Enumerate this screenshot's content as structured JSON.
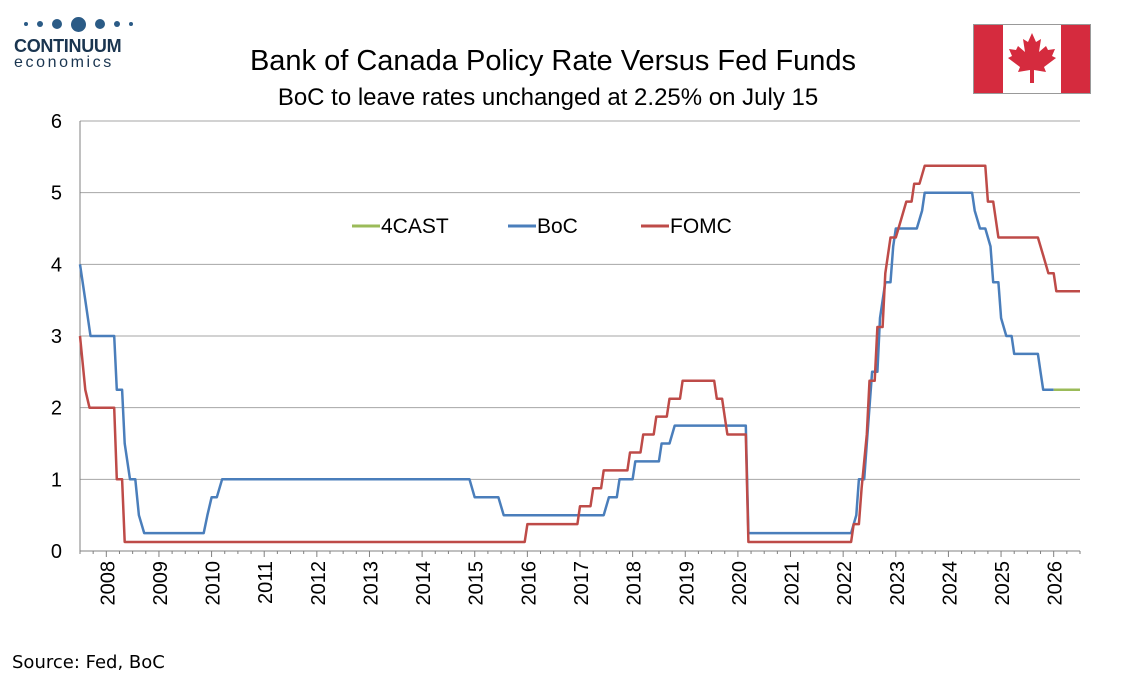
{
  "logo": {
    "name": "CONTINUUM",
    "sub": "economics"
  },
  "source": "Source: Fed, BoC",
  "colors": {
    "forecast": "#9bbb59",
    "boc": "#4a7ebb",
    "fomc": "#be4b48",
    "grid": "#a6a6a6",
    "flag_red": "#d52b3e"
  },
  "chart_data": {
    "type": "line",
    "title": "Bank of Canada Policy Rate Versus Fed Funds",
    "subtitle": "BoC to leave rates unchanged at 2.25% on July 15",
    "ylim": [
      0,
      6
    ],
    "yticks": [
      0,
      1,
      2,
      3,
      4,
      5,
      6
    ],
    "xlim": [
      2007.5,
      2026.5
    ],
    "xtick_labels": [
      "2008",
      "2009",
      "2010",
      "2011",
      "2012",
      "2013",
      "2014",
      "2015",
      "2016",
      "2017",
      "2018",
      "2019",
      "2020",
      "2021",
      "2022",
      "2023",
      "2024",
      "2025",
      "2026"
    ],
    "legend": {
      "placement": "top-center",
      "entries": [
        "4CAST",
        "BoC",
        "FOMC"
      ]
    },
    "grid": true,
    "series": [
      {
        "name": "4CAST",
        "points": [
          [
            2026.0,
            2.25
          ],
          [
            2026.5,
            2.25
          ]
        ]
      },
      {
        "name": "BoC",
        "points": [
          [
            2007.5,
            4.0
          ],
          [
            2007.6,
            3.5
          ],
          [
            2007.7,
            3.0
          ],
          [
            2008.1,
            3.0
          ],
          [
            2008.15,
            3.0
          ],
          [
            2008.2,
            2.25
          ],
          [
            2008.3,
            2.25
          ],
          [
            2008.35,
            1.5
          ],
          [
            2008.45,
            1.0
          ],
          [
            2008.55,
            1.0
          ],
          [
            2008.62,
            0.5
          ],
          [
            2008.72,
            0.25
          ],
          [
            2009.85,
            0.25
          ],
          [
            2009.92,
            0.5
          ],
          [
            2010.0,
            0.75
          ],
          [
            2010.1,
            0.75
          ],
          [
            2010.2,
            1.0
          ],
          [
            2014.9,
            1.0
          ],
          [
            2015.0,
            0.75
          ],
          [
            2015.45,
            0.75
          ],
          [
            2015.55,
            0.5
          ],
          [
            2017.45,
            0.5
          ],
          [
            2017.55,
            0.75
          ],
          [
            2017.7,
            0.75
          ],
          [
            2017.75,
            1.0
          ],
          [
            2018.0,
            1.0
          ],
          [
            2018.05,
            1.25
          ],
          [
            2018.5,
            1.25
          ],
          [
            2018.55,
            1.5
          ],
          [
            2018.7,
            1.5
          ],
          [
            2018.8,
            1.75
          ],
          [
            2020.15,
            1.75
          ],
          [
            2020.2,
            0.25
          ],
          [
            2022.15,
            0.25
          ],
          [
            2022.25,
            0.5
          ],
          [
            2022.3,
            1.0
          ],
          [
            2022.4,
            1.0
          ],
          [
            2022.45,
            1.5
          ],
          [
            2022.55,
            2.5
          ],
          [
            2022.65,
            2.5
          ],
          [
            2022.7,
            3.25
          ],
          [
            2022.8,
            3.75
          ],
          [
            2022.9,
            3.75
          ],
          [
            2022.95,
            4.25
          ],
          [
            2023.0,
            4.5
          ],
          [
            2023.4,
            4.5
          ],
          [
            2023.5,
            4.75
          ],
          [
            2023.55,
            5.0
          ],
          [
            2024.45,
            5.0
          ],
          [
            2024.5,
            4.75
          ],
          [
            2024.6,
            4.5
          ],
          [
            2024.7,
            4.5
          ],
          [
            2024.8,
            4.25
          ],
          [
            2024.85,
            3.75
          ],
          [
            2024.95,
            3.75
          ],
          [
            2025.0,
            3.25
          ],
          [
            2025.1,
            3.0
          ],
          [
            2025.2,
            3.0
          ],
          [
            2025.25,
            2.75
          ],
          [
            2025.7,
            2.75
          ],
          [
            2025.75,
            2.5
          ],
          [
            2025.8,
            2.25
          ],
          [
            2026.0,
            2.25
          ]
        ]
      },
      {
        "name": "FOMC",
        "points": [
          [
            2007.5,
            3.0
          ],
          [
            2007.6,
            2.25
          ],
          [
            2007.68,
            2.0
          ],
          [
            2008.15,
            2.0
          ],
          [
            2008.2,
            1.0
          ],
          [
            2008.3,
            1.0
          ],
          [
            2008.35,
            0.125
          ],
          [
            2015.95,
            0.125
          ],
          [
            2016.0,
            0.375
          ],
          [
            2016.95,
            0.375
          ],
          [
            2017.0,
            0.625
          ],
          [
            2017.2,
            0.625
          ],
          [
            2017.25,
            0.875
          ],
          [
            2017.4,
            0.875
          ],
          [
            2017.45,
            1.125
          ],
          [
            2017.9,
            1.125
          ],
          [
            2017.95,
            1.375
          ],
          [
            2018.15,
            1.375
          ],
          [
            2018.2,
            1.625
          ],
          [
            2018.4,
            1.625
          ],
          [
            2018.45,
            1.875
          ],
          [
            2018.65,
            1.875
          ],
          [
            2018.7,
            2.125
          ],
          [
            2018.9,
            2.125
          ],
          [
            2018.95,
            2.375
          ],
          [
            2019.55,
            2.375
          ],
          [
            2019.6,
            2.125
          ],
          [
            2019.7,
            2.125
          ],
          [
            2019.75,
            1.875
          ],
          [
            2019.8,
            1.625
          ],
          [
            2020.15,
            1.625
          ],
          [
            2020.2,
            0.125
          ],
          [
            2022.15,
            0.125
          ],
          [
            2022.2,
            0.375
          ],
          [
            2022.3,
            0.375
          ],
          [
            2022.35,
            0.875
          ],
          [
            2022.45,
            1.625
          ],
          [
            2022.5,
            2.375
          ],
          [
            2022.6,
            2.375
          ],
          [
            2022.65,
            3.125
          ],
          [
            2022.75,
            3.125
          ],
          [
            2022.8,
            3.875
          ],
          [
            2022.9,
            4.375
          ],
          [
            2023.0,
            4.375
          ],
          [
            2023.1,
            4.625
          ],
          [
            2023.2,
            4.875
          ],
          [
            2023.3,
            4.875
          ],
          [
            2023.35,
            5.125
          ],
          [
            2023.45,
            5.125
          ],
          [
            2023.55,
            5.375
          ],
          [
            2024.7,
            5.375
          ],
          [
            2024.75,
            4.875
          ],
          [
            2024.85,
            4.875
          ],
          [
            2024.9,
            4.625
          ],
          [
            2024.95,
            4.375
          ],
          [
            2025.7,
            4.375
          ],
          [
            2025.8,
            4.125
          ],
          [
            2025.9,
            3.875
          ],
          [
            2026.0,
            3.875
          ],
          [
            2026.05,
            3.625
          ],
          [
            2026.5,
            3.625
          ]
        ]
      }
    ]
  }
}
